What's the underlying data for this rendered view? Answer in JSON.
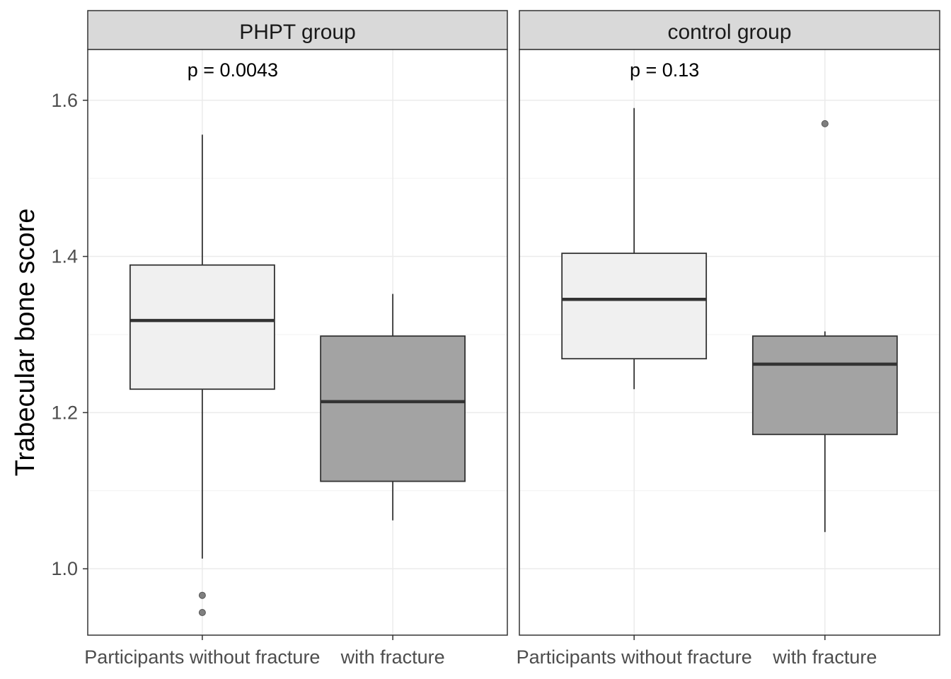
{
  "chart_data": {
    "type": "boxplot",
    "ylabel": "Trabecular bone score",
    "xlabel": "",
    "ylim": [
      0.915,
      1.665
    ],
    "yticks": [
      1.0,
      1.2,
      1.4,
      1.6
    ],
    "ytick_labels": [
      "1.0",
      "1.2",
      "1.4",
      "1.6"
    ],
    "categories": [
      "Participants without fracture",
      "with fracture"
    ],
    "grid": true,
    "colors": {
      "without": "#f0f0f0",
      "with": "#a3a3a3",
      "line": "#333333",
      "outlier": "#7f7f7f"
    },
    "panels": [
      {
        "strip": "PHPT group",
        "annotation": "p = 0.0043",
        "boxes": [
          {
            "category": "Participants without fracture",
            "lower_whisker": 1.013,
            "q1": 1.23,
            "median": 1.318,
            "q3": 1.389,
            "upper_whisker": 1.556,
            "outliers": [
              0.966,
              0.944
            ]
          },
          {
            "category": "with fracture",
            "lower_whisker": 1.062,
            "q1": 1.112,
            "median": 1.214,
            "q3": 1.298,
            "upper_whisker": 1.352,
            "outliers": []
          }
        ]
      },
      {
        "strip": "control group",
        "annotation": "p = 0.13",
        "boxes": [
          {
            "category": "Participants without fracture",
            "lower_whisker": 1.23,
            "q1": 1.269,
            "median": 1.345,
            "q3": 1.404,
            "upper_whisker": 1.59,
            "outliers": []
          },
          {
            "category": "with fracture",
            "lower_whisker": 1.047,
            "q1": 1.172,
            "median": 1.262,
            "q3": 1.298,
            "upper_whisker": 1.304,
            "outliers": [
              1.57
            ]
          }
        ]
      }
    ]
  }
}
